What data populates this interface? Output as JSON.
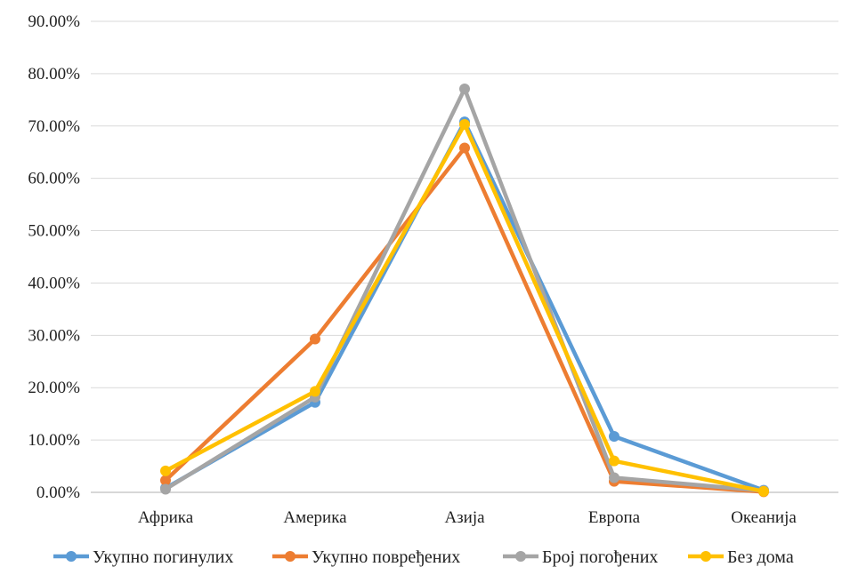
{
  "chart_data": {
    "type": "line",
    "title": "",
    "xlabel": "",
    "ylabel": "",
    "categories": [
      "Африка",
      "Америка",
      "Азија",
      "Европа",
      "Океанија"
    ],
    "ylim": [
      0,
      90
    ],
    "ytick_step": 10,
    "ytick_labels": [
      "0.00%",
      "10.00%",
      "20.00%",
      "30.00%",
      "40.00%",
      "50.00%",
      "60.00%",
      "70.00%",
      "80.00%",
      "90.00%"
    ],
    "grid": true,
    "legend_position": "bottom",
    "series": [
      {
        "name": "Укупно погинулих",
        "color": "#5b9bd5",
        "values": [
          0.8,
          17.2,
          70.8,
          10.7,
          0.4
        ]
      },
      {
        "name": "Укупно повређених",
        "color": "#ed7d31",
        "values": [
          2.3,
          29.3,
          65.8,
          2.1,
          0.1
        ]
      },
      {
        "name": "Број погођених",
        "color": "#a5a5a5",
        "values": [
          0.6,
          18.2,
          77.1,
          2.8,
          0.3
        ]
      },
      {
        "name": "Без дома",
        "color": "#ffc000",
        "values": [
          4.1,
          19.3,
          70.3,
          6.0,
          0.2
        ]
      }
    ]
  }
}
